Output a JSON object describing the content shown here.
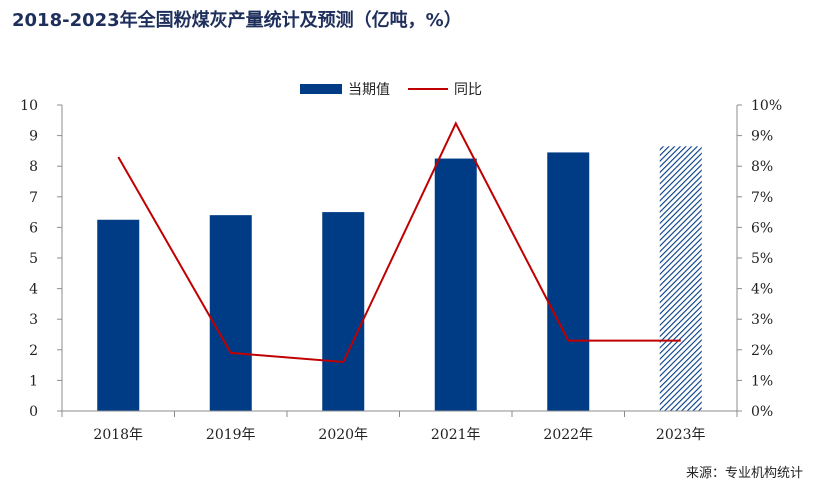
{
  "title": "2018-2023年全国粉煤灰产量统计及预测（亿吨，%）",
  "source": "来源：专业机构统计",
  "colors": {
    "bar": "#003b85",
    "line": "#c00000",
    "forecast_hatch": "#003b85"
  },
  "chart_data": {
    "type": "bar",
    "categories": [
      "2018年",
      "2019年",
      "2020年",
      "2021年",
      "2022年",
      "2023年"
    ],
    "series": [
      {
        "name": "当期值",
        "type": "bar",
        "axis": "left",
        "values": [
          6.25,
          6.4,
          6.5,
          8.25,
          8.45,
          8.65
        ],
        "forecast_from_index": 5
      },
      {
        "name": "同比",
        "type": "line",
        "axis": "right",
        "unit": "%",
        "values": [
          8.3,
          1.9,
          1.6,
          9.4,
          2.3,
          2.3
        ]
      }
    ],
    "y_left": {
      "min": 0,
      "max": 10,
      "ticks": [
        "0",
        "1",
        "2",
        "3",
        "4",
        "5",
        "6",
        "7",
        "8",
        "9",
        "10"
      ]
    },
    "y_right": {
      "min": 0,
      "max": 10,
      "ticks": [
        "0%",
        "1%",
        "2%",
        "3%",
        "4%",
        "5%",
        "6%",
        "7%",
        "8%",
        "9%",
        "10%"
      ]
    },
    "legend_position": "top-center",
    "grid": false
  }
}
